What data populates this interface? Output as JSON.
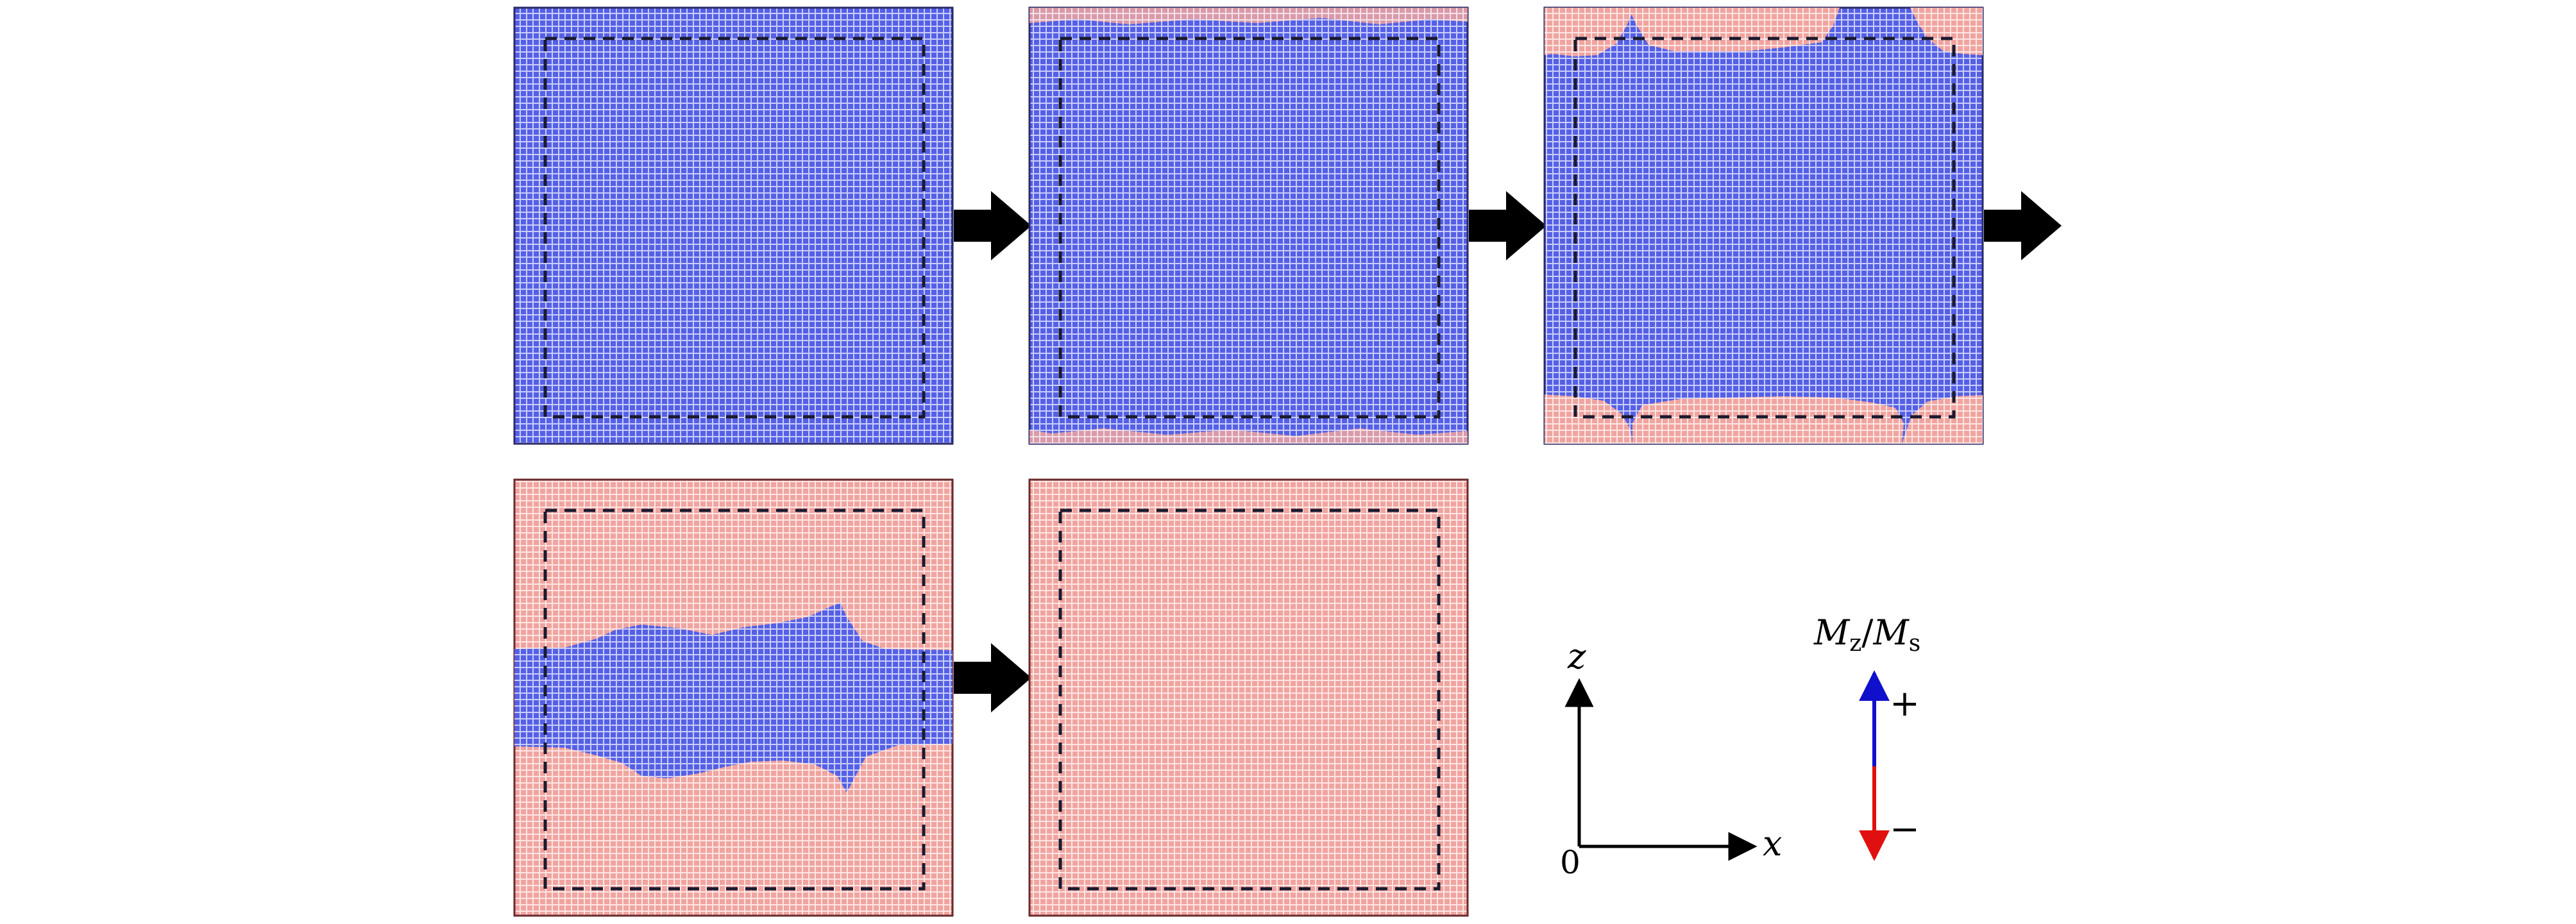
{
  "figure": {
    "panels": [
      {
        "row": 1,
        "col": 1,
        "state": "all-up",
        "arrow_after": true
      },
      {
        "row": 1,
        "col": 2,
        "state": "edge-nucleation",
        "arrow_after": true
      },
      {
        "row": 1,
        "col": 3,
        "state": "corner-domains",
        "arrow_after": true
      },
      {
        "row": 2,
        "col": 1,
        "state": "central-band",
        "arrow_after": true
      },
      {
        "row": 2,
        "col": 2,
        "state": "all-down",
        "arrow_after": false
      }
    ],
    "colors": {
      "spin_up": "#5560e6",
      "spin_down": "#f0a4a0",
      "spin_up_grid": "#c9cdf8",
      "spin_down_grid": "#fbe2df",
      "dashed_box": "#1a1a2e",
      "arrow": "#000000",
      "legend_plus": "#1010cc",
      "legend_minus": "#e01010"
    },
    "axes": {
      "origin_label": "0",
      "x_label": "x",
      "z_label": "z"
    },
    "legend": {
      "title": "M_z/M_s",
      "title_main": "M",
      "title_sub1": "z",
      "title_slash": "/",
      "title_main2": "M",
      "title_sub2": "s",
      "plus": "+",
      "minus": "−"
    }
  }
}
